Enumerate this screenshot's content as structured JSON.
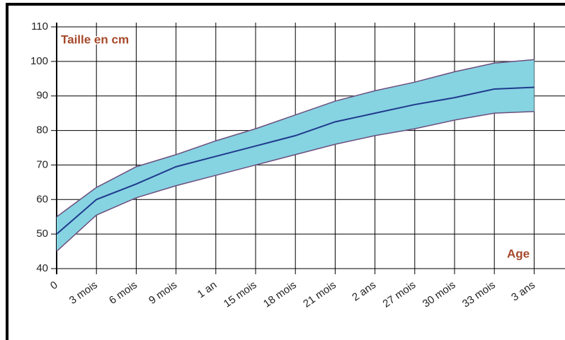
{
  "chart_data": {
    "type": "line",
    "y_label": "Taille en cm",
    "x_label": "Age",
    "categories": [
      "0",
      "3 mois",
      "6 mois",
      "9 mois",
      "1 an",
      "15 mois",
      "18 mois",
      "21 mois",
      "2 ans",
      "27 mois",
      "30 mois",
      "33 mois",
      "3 ans"
    ],
    "series": [
      {
        "color": "#1f3a8c",
        "values": [
          50,
          60,
          64.5,
          69.5,
          72.5,
          75.5,
          78.5,
          82.5,
          85,
          87.5,
          89.5,
          92,
          92.5
        ]
      }
    ],
    "band": {
      "color": "#86d3e2",
      "edge_color": "#6b4f7d",
      "upper": [
        55,
        63.5,
        69.5,
        73,
        77,
        80.5,
        84.5,
        88.5,
        91.5,
        94,
        97,
        99.5,
        100.5
      ],
      "lower": [
        45,
        55.5,
        60.5,
        64,
        67,
        70,
        73,
        76,
        78.5,
        80.5,
        83,
        85,
        85.5
      ]
    },
    "ylim": [
      40,
      110
    ],
    "yticks": [
      40,
      50,
      60,
      70,
      80,
      90,
      100,
      110
    ],
    "grid": true
  }
}
